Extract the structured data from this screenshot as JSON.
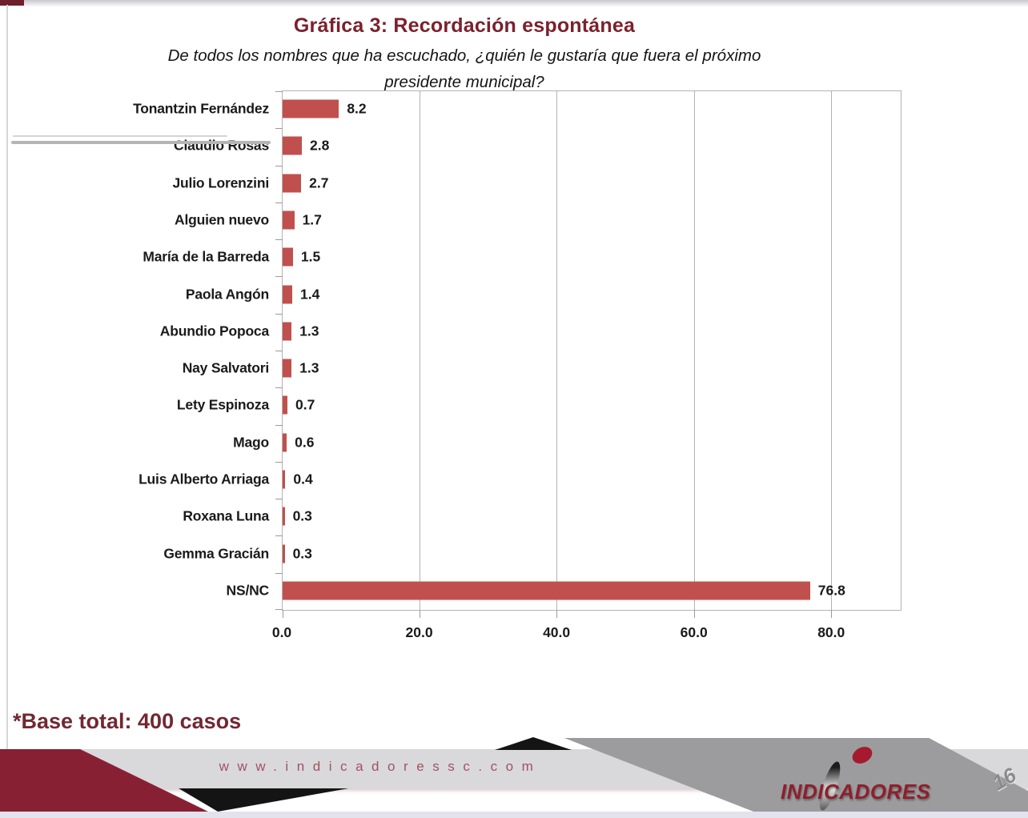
{
  "header": {
    "title": "Gráfica 3: Recordación espontánea",
    "subtitle_line1": "De todos los nombres que ha escuchado, ¿quién le gustaría que fuera el próximo",
    "subtitle_line2": "presidente municipal?"
  },
  "note": "*Base total: 400 casos",
  "footer": {
    "website": "www.indicadoressc.com",
    "logo_text": "INDICADORES",
    "page_number": "16"
  },
  "colors": {
    "bar": "#c0504d",
    "title_maroon": "#7b212c",
    "ribbon_maroon": "#882033",
    "ribbon_gray": "#9c9c9e",
    "band_gray": "#d9d9db"
  },
  "chart_data": {
    "type": "bar",
    "orientation": "horizontal",
    "title": "Gráfica 3: Recordación espontánea",
    "categories": [
      "Tonantzin Fernández",
      "Claudio Rosas",
      "Julio Lorenzini",
      "Alguien nuevo",
      "María de la Barreda",
      "Paola Angón",
      "Abundio Popoca",
      "Nay Salvatori",
      "Lety Espinoza",
      "Mago",
      "Luis Alberto Arriaga",
      "Roxana Luna",
      "Gemma Gracián",
      "NS/NC"
    ],
    "values": [
      8.2,
      2.8,
      2.7,
      1.7,
      1.5,
      1.4,
      1.3,
      1.3,
      0.7,
      0.6,
      0.4,
      0.3,
      0.3,
      76.8
    ],
    "value_labels": [
      "8.2",
      "2.8",
      "2.7",
      "1.7",
      "1.5",
      "1.4",
      "1.3",
      "1.3",
      "0.7",
      "0.6",
      "0.4",
      "0.3",
      "0.3",
      "76.8"
    ],
    "xlim": [
      0,
      90
    ],
    "xticks": [
      0,
      20,
      40,
      60,
      80
    ],
    "xtick_labels": [
      "0.0",
      "20.0",
      "40.0",
      "60.0",
      "80.0"
    ],
    "grid": true,
    "bar_color": "#c0504d",
    "legend": null
  }
}
